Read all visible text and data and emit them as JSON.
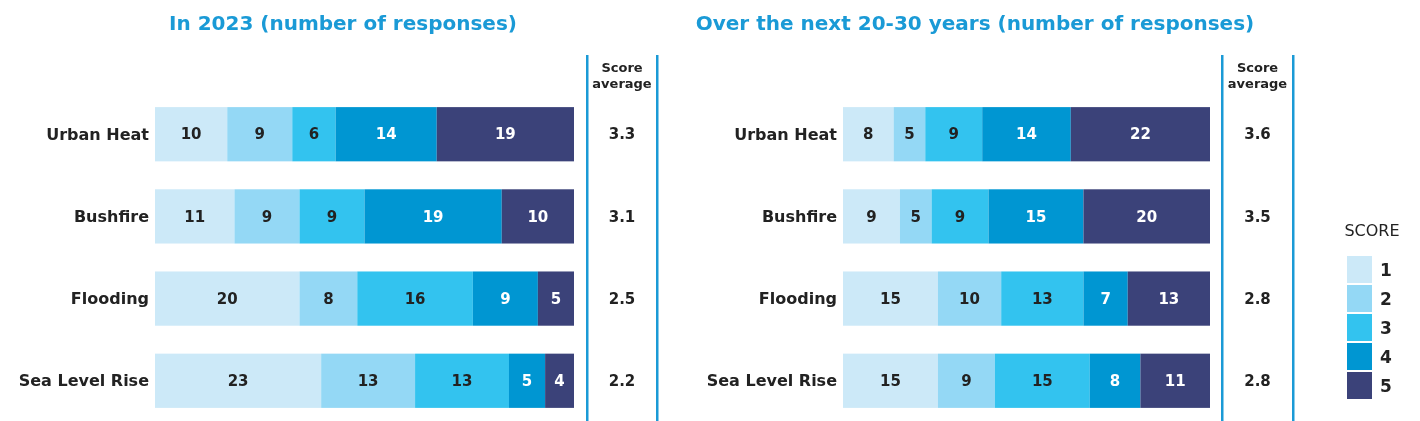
{
  "chart_data": [
    {
      "type": "bar",
      "orientation": "horizontal",
      "stacked": true,
      "title": "In 2023 (number of responses)",
      "categories": [
        "Urban Heat",
        "Bushfire",
        "Flooding",
        "Sea Level Rise"
      ],
      "xlim": [
        0,
        58
      ],
      "tick_labels": "y",
      "data_labels": true,
      "legend": false,
      "series": [
        {
          "color": "#cce9f8",
          "values": [
            10,
            11,
            20,
            23
          ]
        },
        {
          "color": "#94d8f5",
          "values": [
            9,
            9,
            8,
            13
          ]
        },
        {
          "color": "#33c3ef",
          "values": [
            6,
            9,
            16,
            13
          ]
        },
        {
          "color": "#0096d2",
          "values": [
            14,
            19,
            9,
            5
          ]
        },
        {
          "color": "#3b4279",
          "values": [
            19,
            10,
            5,
            4
          ]
        }
      ],
      "annotations": [
        "Score average",
        "3.3",
        "3.1",
        "2.5",
        "2.2"
      ]
    },
    {
      "type": "bar",
      "orientation": "horizontal",
      "stacked": true,
      "title": "Over the next 20-30 years (number of responses)",
      "categories": [
        "Urban Heat",
        "Bushfire",
        "Flooding",
        "Sea Level Rise"
      ],
      "xlim": [
        0,
        58
      ],
      "tick_labels": "y",
      "data_labels": true,
      "legend": "right",
      "legend_title": "SCORE",
      "series": [
        {
          "name": "1",
          "color": "#cce9f8",
          "values": [
            8,
            9,
            15,
            15
          ]
        },
        {
          "name": "2",
          "color": "#94d8f5",
          "values": [
            5,
            5,
            10,
            9
          ]
        },
        {
          "name": "3",
          "color": "#33c3ef",
          "values": [
            9,
            9,
            13,
            15
          ]
        },
        {
          "name": "4",
          "color": "#0096d2",
          "values": [
            14,
            15,
            7,
            8
          ]
        },
        {
          "name": "5",
          "color": "#3b4279",
          "values": [
            22,
            20,
            13,
            11
          ]
        }
      ],
      "annotations": [
        "Score average",
        "3.6",
        "3.5",
        "2.8",
        "2.8"
      ]
    }
  ]
}
